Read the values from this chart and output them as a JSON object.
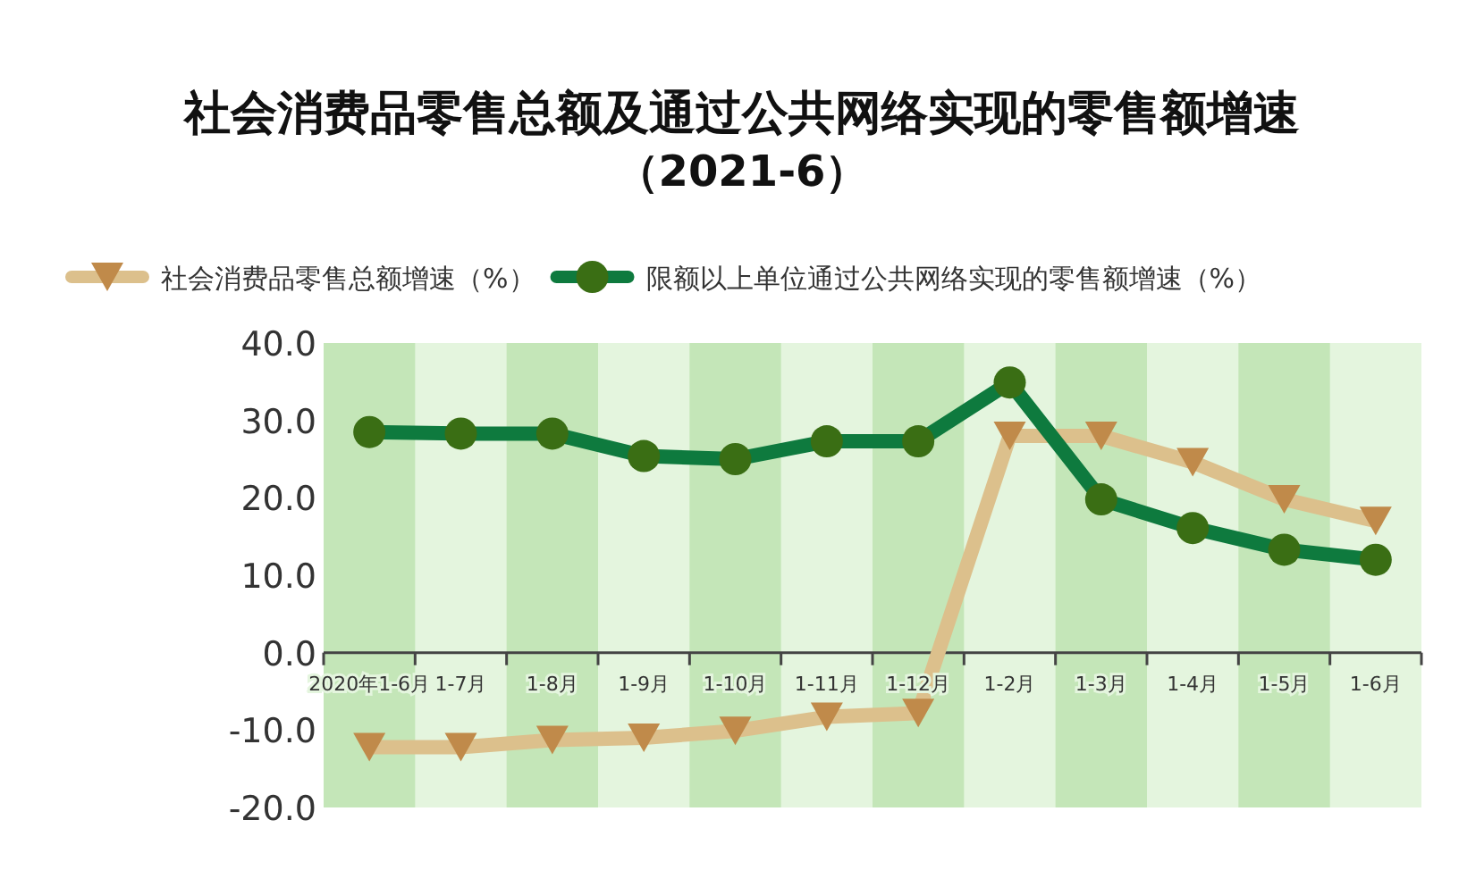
{
  "chart_data": {
    "type": "line",
    "title": "社会消费品零售总额及通过公共网络实现的零售额增速",
    "subtitle": "（2021-6）",
    "categories": [
      "2020年1-6月",
      "1-7月",
      "1-8月",
      "1-9月",
      "1-10月",
      "1-11月",
      "1-12月",
      "1-2月",
      "1-3月",
      "1-4月",
      "1-5月",
      "1-6月"
    ],
    "series": [
      {
        "name": "社会消费品零售总额增速（%）",
        "color": "#dcc08c",
        "marker": "triangle",
        "values": [
          -12.2,
          -12.2,
          -11.3,
          -11.0,
          -10.1,
          -8.3,
          -7.8,
          28.0,
          28.0,
          24.6,
          19.8,
          17.0
        ]
      },
      {
        "name": "限额以上单位通过公共网络实现的零售额增速（%）",
        "color": "#0e7a3e",
        "marker": "circle",
        "values": [
          28.5,
          28.3,
          28.3,
          25.4,
          25.0,
          27.3,
          27.3,
          34.9,
          19.8,
          16.1,
          13.3,
          12.0
        ]
      }
    ],
    "ylim": [
      -20,
      40
    ],
    "yticks": [
      {
        "value": -20,
        "label": "-20.0"
      },
      {
        "value": -10,
        "label": "-10.0"
      },
      {
        "value": 0,
        "label": "0.0"
      },
      {
        "value": 10,
        "label": "10.0"
      },
      {
        "value": 20,
        "label": "20.0"
      },
      {
        "value": 30,
        "label": "30.0"
      },
      {
        "value": 40,
        "label": "40.0"
      }
    ],
    "bands": [
      {
        "axis": "x",
        "from": "2020年1-6月",
        "to": "2020年1-6月",
        "color": "#c4e6b8"
      },
      {
        "axis": "x",
        "from": "1-8月",
        "to": "1-8月",
        "color": "#c4e6b8"
      },
      {
        "axis": "x",
        "from": "1-10月",
        "to": "1-10月",
        "color": "#c4e6b8"
      },
      {
        "axis": "x",
        "from": "1-12月",
        "to": "1-12月",
        "color": "#c4e6b8"
      },
      {
        "axis": "x",
        "from": "1-3月",
        "to": "1-3月",
        "color": "#c4e6b8"
      },
      {
        "axis": "x",
        "from": "1-5月",
        "to": "1-5月",
        "color": "#c4e6b8"
      }
    ],
    "grid": false,
    "legend": "top"
  }
}
